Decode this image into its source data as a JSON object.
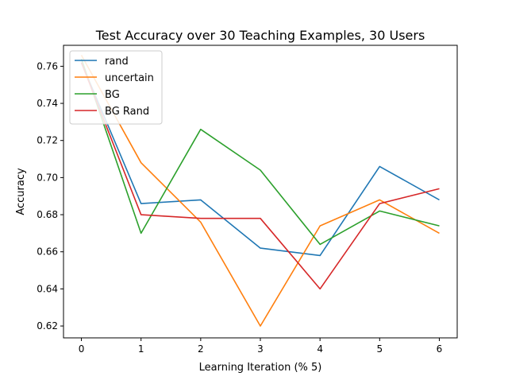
{
  "chart_data": {
    "type": "line",
    "title": "Test Accuracy over 30 Teaching Examples, 30 Users",
    "xlabel": "Learning Iteration (% 5)",
    "ylabel": "Accuracy",
    "x": [
      0,
      1,
      2,
      3,
      4,
      5,
      6
    ],
    "x_ticks": [
      "0",
      "1",
      "2",
      "3",
      "4",
      "5",
      "6"
    ],
    "y_ticks": [
      "0.62",
      "0.64",
      "0.66",
      "0.68",
      "0.70",
      "0.72",
      "0.74",
      "0.76"
    ],
    "xlim": [
      -0.3,
      6.3
    ],
    "ylim": [
      0.6136,
      0.7713
    ],
    "grid": false,
    "legend_position": "upper-left",
    "series": [
      {
        "name": "rand",
        "color": "#1f77b4",
        "values": [
          0.762,
          0.686,
          0.688,
          0.662,
          0.658,
          0.706,
          0.688
        ]
      },
      {
        "name": "uncertain",
        "color": "#ff7f0e",
        "values": [
          0.766,
          0.708,
          0.676,
          0.62,
          0.674,
          0.688,
          0.67
        ]
      },
      {
        "name": "BG",
        "color": "#2ca02c",
        "values": [
          0.764,
          0.67,
          0.726,
          0.704,
          0.664,
          0.682,
          0.674
        ]
      },
      {
        "name": "BG Rand",
        "color": "#d62728",
        "values": [
          0.762,
          0.68,
          0.678,
          0.678,
          0.64,
          0.686,
          0.694
        ]
      }
    ]
  }
}
